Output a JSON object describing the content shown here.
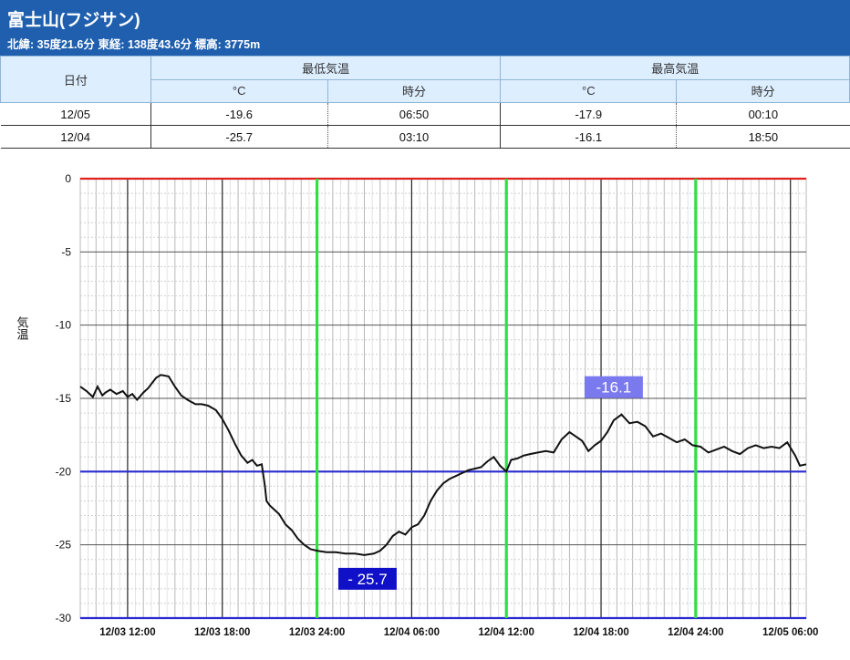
{
  "header": {
    "title": "富士山(フジサン)",
    "subtitle": "北緯: 35度21.6分 東経: 138度43.6分 標高: 3775m"
  },
  "table": {
    "date_header": "日付",
    "min_header": "最低気温",
    "max_header": "最高気温",
    "unit_header": "°C",
    "time_header": "時分",
    "rows": [
      {
        "date": "12/05",
        "min": "-19.6",
        "min_time": "06:50",
        "max": "-17.9",
        "max_time": "00:10"
      },
      {
        "date": "12/04",
        "min": "-25.7",
        "min_time": "03:10",
        "max": "-16.1",
        "max_time": "18:50"
      }
    ]
  },
  "chart_data": {
    "type": "line",
    "ylabel": "気温",
    "ylim": [
      -30,
      0
    ],
    "y_ticks": [
      "0",
      "-5",
      "-10",
      "-15",
      "-20",
      "-25",
      "-30"
    ],
    "x_tick_labels": [
      "12/03 12:00",
      "12/03 18:00",
      "12/03 24:00",
      "12/04 06:00",
      "12/04 12:00",
      "12/04 18:00",
      "12/04 24:00",
      "12/05 06:00"
    ],
    "x_unit": "hours since 12/03 09:00",
    "xlim": [
      0,
      46
    ],
    "reference_lines": [
      {
        "value": 0,
        "color": "#e0201c"
      },
      {
        "value": -20,
        "color": "#2a2ad0"
      },
      {
        "value": -30,
        "color": "#2a2ad0"
      }
    ],
    "day_markers": [
      {
        "hour": 15,
        "color": "#33dd44"
      },
      {
        "hour": 27,
        "color": "#33dd44"
      },
      {
        "hour": 39,
        "color": "#33dd44"
      }
    ],
    "annotations": [
      {
        "text": "-16.1",
        "x": 33.8,
        "y": -16.1,
        "color": "#7a7aee"
      },
      {
        "text": "- 25.7",
        "x": 18.2,
        "y": -25.7,
        "color": "#1010c8"
      }
    ],
    "series": [
      {
        "color": "#111111",
        "x": [
          0,
          0.4,
          0.8,
          1.1,
          1.4,
          1.6,
          1.9,
          2.3,
          2.7,
          3.0,
          3.3,
          3.6,
          4.0,
          4.3,
          4.8,
          5.1,
          5.6,
          6.0,
          6.4,
          6.8,
          7.3,
          7.7,
          8.1,
          8.6,
          9.0,
          9.4,
          9.8,
          10.2,
          10.6,
          10.9,
          11.2,
          11.5,
          11.7,
          11.8,
          12.0,
          12.3,
          12.6,
          13.0,
          13.4,
          13.8,
          14.2,
          14.6,
          15.0,
          15.6,
          16.2,
          16.8,
          17.4,
          18.0,
          18.6,
          19.0,
          19.4,
          19.8,
          20.2,
          20.6,
          21.0,
          21.4,
          21.8,
          22.2,
          22.6,
          23.0,
          23.4,
          23.8,
          24.2,
          24.6,
          25.0,
          25.4,
          25.8,
          26.2,
          26.6,
          27.0,
          27.3,
          27.7,
          28.1,
          28.5,
          29.0,
          29.5,
          30.0,
          30.5,
          31.0,
          31.4,
          31.8,
          32.2,
          32.6,
          33.0,
          33.4,
          33.8,
          34.3,
          34.8,
          35.3,
          35.8,
          36.3,
          36.8,
          37.3,
          37.8,
          38.3,
          38.8,
          39.3,
          39.8,
          40.3,
          40.8,
          41.3,
          41.8,
          42.3,
          42.8,
          43.3,
          43.8,
          44.3,
          44.8,
          45.3,
          45.6,
          46.0
        ],
        "values": [
          -14.2,
          -14.5,
          -14.9,
          -14.2,
          -14.8,
          -14.6,
          -14.4,
          -14.7,
          -14.5,
          -14.9,
          -14.7,
          -15.1,
          -14.6,
          -14.3,
          -13.6,
          -13.4,
          -13.5,
          -14.2,
          -14.8,
          -15.1,
          -15.4,
          -15.4,
          -15.5,
          -15.8,
          -16.4,
          -17.2,
          -18.1,
          -18.9,
          -19.4,
          -19.2,
          -19.6,
          -19.5,
          -21.0,
          -22.0,
          -22.3,
          -22.6,
          -22.9,
          -23.6,
          -24.0,
          -24.6,
          -25.0,
          -25.3,
          -25.4,
          -25.5,
          -25.5,
          -25.6,
          -25.6,
          -25.7,
          -25.6,
          -25.4,
          -25.0,
          -24.4,
          -24.1,
          -24.3,
          -23.8,
          -23.6,
          -23.0,
          -22.0,
          -21.3,
          -20.8,
          -20.5,
          -20.3,
          -20.1,
          -19.9,
          -19.8,
          -19.7,
          -19.3,
          -19.0,
          -19.6,
          -20.0,
          -19.2,
          -19.1,
          -18.9,
          -18.8,
          -18.7,
          -18.6,
          -18.7,
          -17.8,
          -17.3,
          -17.6,
          -17.9,
          -18.6,
          -18.2,
          -17.9,
          -17.3,
          -16.5,
          -16.1,
          -16.7,
          -16.6,
          -16.9,
          -17.6,
          -17.4,
          -17.7,
          -18.0,
          -17.8,
          -18.2,
          -18.3,
          -18.7,
          -18.5,
          -18.3,
          -18.6,
          -18.8,
          -18.4,
          -18.2,
          -18.4,
          -18.3,
          -18.4,
          -18.0,
          -18.9,
          -19.6,
          -19.5
        ]
      }
    ]
  }
}
